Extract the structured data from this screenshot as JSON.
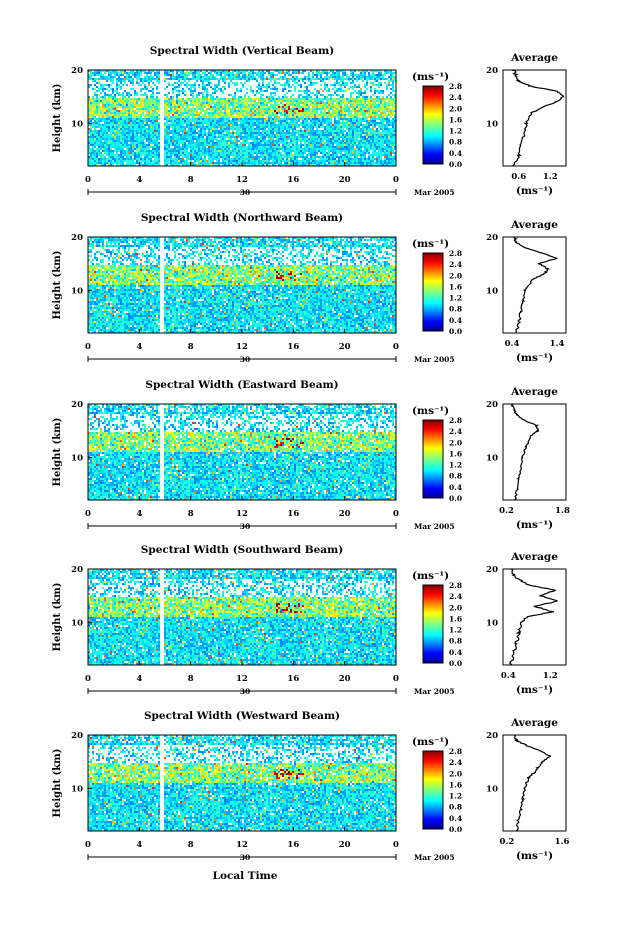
{
  "figure": {
    "xlabel": "Local Time",
    "date_label": "Mar 2005",
    "day_label": "30",
    "colorbar_unit": "(ms⁻¹)",
    "colorbar_ticks": [
      "0.0",
      "0.4",
      "0.8",
      "1.2",
      "1.6",
      "2.0",
      "2.4",
      "2.8"
    ],
    "avg_title": "Average",
    "avg_xlabel": "(ms⁻¹)",
    "ylabel": "Height (km)",
    "time_ticks": [
      "0",
      "4",
      "8",
      "12",
      "16",
      "20",
      "0"
    ]
  },
  "chart_data": [
    {
      "type": "heatmap",
      "title": "Spectral Width (Vertical Beam)",
      "ylabel": "Height (km)",
      "xlabel": "Local Time",
      "x_range": [
        0,
        24
      ],
      "ylim": [
        2,
        20
      ],
      "y_ticks": [
        "20",
        "10"
      ],
      "colorbar_range": [
        0.0,
        2.8
      ],
      "profile": {
        "title": "Average",
        "x_ticks": [
          "0.6",
          "1.2"
        ],
        "y_ticks": [
          "20",
          "10"
        ],
        "xlim": [
          0.3,
          1.5
        ],
        "heights": [
          2,
          4,
          6,
          8,
          10,
          12,
          14,
          15,
          16,
          17,
          18,
          19,
          20
        ],
        "values": [
          0.5,
          0.6,
          0.65,
          0.7,
          0.75,
          0.85,
          1.3,
          1.45,
          1.35,
          0.8,
          0.6,
          0.55,
          0.5
        ]
      }
    },
    {
      "type": "heatmap",
      "title": "Spectral Width (Northward Beam)",
      "ylabel": "Height (km)",
      "xlabel": "Local Time",
      "x_range": [
        0,
        24
      ],
      "ylim": [
        2,
        20
      ],
      "y_ticks": [
        "20",
        "10"
      ],
      "colorbar_range": [
        0.0,
        2.8
      ],
      "profile": {
        "title": "Average",
        "x_ticks": [
          "0.4",
          "1.4"
        ],
        "y_ticks": [
          "20",
          "10"
        ],
        "xlim": [
          0.2,
          1.6
        ],
        "heights": [
          2,
          4,
          6,
          8,
          10,
          12,
          13,
          14,
          15,
          16,
          17,
          18,
          19,
          20
        ],
        "values": [
          0.5,
          0.55,
          0.6,
          0.65,
          0.7,
          0.85,
          1.1,
          1.2,
          1.0,
          1.4,
          1.05,
          0.7,
          0.5,
          0.45
        ]
      }
    },
    {
      "type": "heatmap",
      "title": "Spectral Width (Eastward Beam)",
      "ylabel": "Height (km)",
      "xlabel": "Local Time",
      "x_range": [
        0,
        24
      ],
      "ylim": [
        2,
        20
      ],
      "y_ticks": [
        "20",
        "10"
      ],
      "colorbar_range": [
        0.0,
        2.8
      ],
      "profile": {
        "title": "Average",
        "x_ticks": [
          "0.2",
          "1.8"
        ],
        "y_ticks": [
          "20",
          "10"
        ],
        "xlim": [
          0.1,
          1.9
        ],
        "heights": [
          2,
          4,
          6,
          8,
          10,
          12,
          14,
          15,
          16,
          17,
          18,
          19,
          20
        ],
        "values": [
          0.45,
          0.5,
          0.55,
          0.6,
          0.65,
          0.75,
          0.9,
          1.1,
          1.05,
          0.7,
          0.5,
          0.4,
          0.35
        ]
      }
    },
    {
      "type": "heatmap",
      "title": "Spectral Width (Southward Beam)",
      "ylabel": "Height (km)",
      "xlabel": "Local Time",
      "x_range": [
        0,
        24
      ],
      "ylim": [
        2,
        20
      ],
      "y_ticks": [
        "20",
        "10"
      ],
      "colorbar_range": [
        0.0,
        2.8
      ],
      "profile": {
        "title": "Average",
        "x_ticks": [
          "0.4",
          "1.2"
        ],
        "y_ticks": [
          "20",
          "10"
        ],
        "xlim": [
          0.3,
          1.5
        ],
        "heights": [
          2,
          4,
          6,
          8,
          10,
          11,
          12,
          13,
          14,
          15,
          16,
          17,
          18,
          19,
          20
        ],
        "values": [
          0.45,
          0.5,
          0.55,
          0.6,
          0.65,
          0.75,
          1.25,
          0.9,
          1.35,
          1.0,
          1.3,
          0.8,
          0.6,
          0.5,
          0.45
        ]
      }
    },
    {
      "type": "heatmap",
      "title": "Spectral Width (Westward Beam)",
      "ylabel": "Height (km)",
      "xlabel": "Local Time",
      "x_range": [
        0,
        24
      ],
      "ylim": [
        2,
        20
      ],
      "y_ticks": [
        "20",
        "10"
      ],
      "colorbar_range": [
        0.0,
        2.8
      ],
      "profile": {
        "title": "Average",
        "x_ticks": [
          "0.2",
          "1.6"
        ],
        "y_ticks": [
          "20",
          "10"
        ],
        "xlim": [
          0.1,
          1.7
        ],
        "heights": [
          2,
          4,
          6,
          8,
          10,
          12,
          13,
          14,
          15,
          16,
          17,
          18,
          19,
          20
        ],
        "values": [
          0.45,
          0.5,
          0.55,
          0.6,
          0.65,
          0.75,
          0.9,
          1.0,
          1.1,
          1.3,
          1.05,
          0.7,
          0.45,
          0.4
        ]
      }
    }
  ]
}
